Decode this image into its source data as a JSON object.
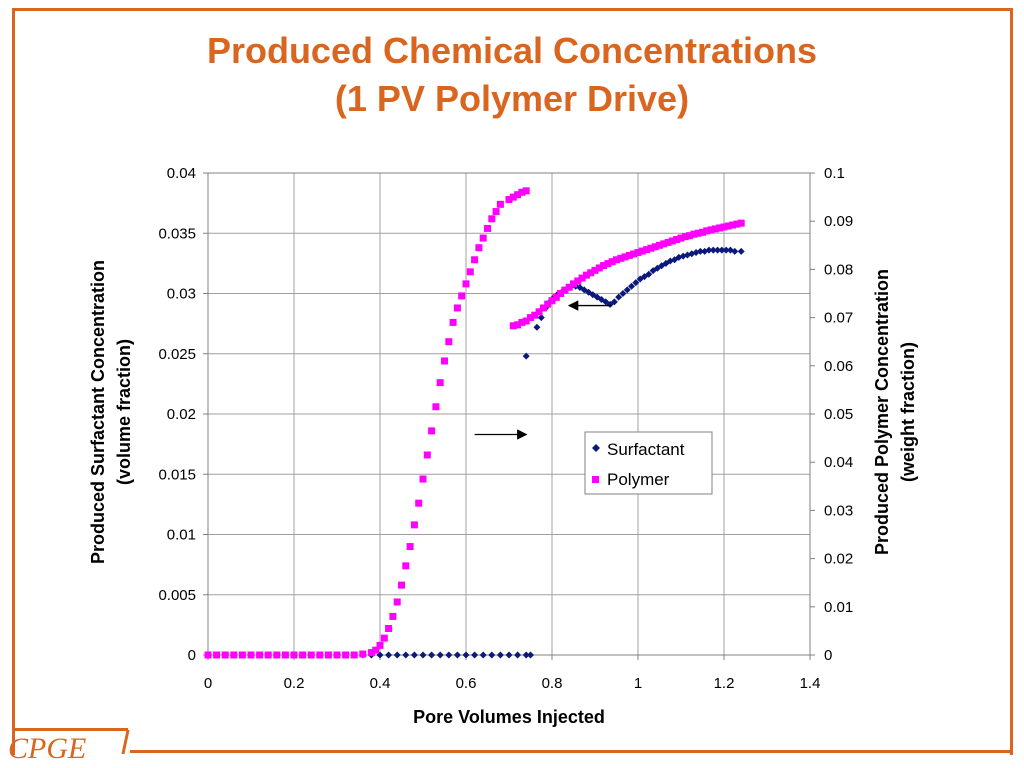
{
  "slide": {
    "title_line1": "Produced Chemical Concentrations",
    "title_line2": "(1 PV Polymer Drive)",
    "logo_text": "CPGE",
    "accent_color": "#d9651e"
  },
  "chart_data": {
    "type": "scatter",
    "xlabel": "Pore Volumes Injected",
    "ylabel_left_line1": "Produced Surfactant Concentration",
    "ylabel_left_line2": "(volume fraction)",
    "ylabel_right_line1": "Produced Polymer Concentration",
    "ylabel_right_line2": "(weight fraction)",
    "xlim": [
      0,
      1.4
    ],
    "ylim_left": [
      0,
      0.04
    ],
    "ylim_right": [
      0,
      0.1
    ],
    "x_ticks": [
      "0",
      "0.2",
      "0.4",
      "0.6",
      "0.8",
      "1",
      "1.2",
      "1.4"
    ],
    "y_left_ticks": [
      "0",
      "0.005",
      "0.01",
      "0.015",
      "0.02",
      "0.025",
      "0.03",
      "0.035",
      "0.04"
    ],
    "y_right_ticks": [
      "0",
      "0.01",
      "0.02",
      "0.03",
      "0.04",
      "0.05",
      "0.06",
      "0.07",
      "0.08",
      "0.09",
      "0.1"
    ],
    "grid": true,
    "legend_position": "center-right",
    "series": [
      {
        "name": "Surfactant",
        "axis": "left",
        "color": "#0b1a7a",
        "marker": "diamond",
        "points": [
          [
            0,
            0
          ],
          [
            0.02,
            0
          ],
          [
            0.04,
            0
          ],
          [
            0.06,
            0
          ],
          [
            0.08,
            0
          ],
          [
            0.1,
            0
          ],
          [
            0.12,
            0
          ],
          [
            0.14,
            0
          ],
          [
            0.16,
            0
          ],
          [
            0.18,
            0
          ],
          [
            0.2,
            0
          ],
          [
            0.22,
            0
          ],
          [
            0.24,
            0
          ],
          [
            0.26,
            0
          ],
          [
            0.28,
            0
          ],
          [
            0.3,
            0
          ],
          [
            0.32,
            0
          ],
          [
            0.34,
            0
          ],
          [
            0.36,
            0
          ],
          [
            0.38,
            0
          ],
          [
            0.4,
            0
          ],
          [
            0.42,
            0
          ],
          [
            0.44,
            0
          ],
          [
            0.46,
            0
          ],
          [
            0.48,
            0
          ],
          [
            0.5,
            0
          ],
          [
            0.52,
            0
          ],
          [
            0.54,
            0
          ],
          [
            0.56,
            0
          ],
          [
            0.58,
            0
          ],
          [
            0.6,
            0
          ],
          [
            0.62,
            0
          ],
          [
            0.64,
            0
          ],
          [
            0.66,
            0
          ],
          [
            0.68,
            0
          ],
          [
            0.7,
            0
          ],
          [
            0.72,
            0
          ],
          [
            0.74,
            0
          ],
          [
            0.75,
            0
          ],
          [
            0.74,
            0.0248
          ],
          [
            0.765,
            0.0272
          ],
          [
            0.775,
            0.028
          ],
          [
            0.785,
            0.0288
          ],
          [
            0.795,
            0.0293
          ],
          [
            0.805,
            0.0297
          ],
          [
            0.815,
            0.03
          ],
          [
            0.825,
            0.0302
          ],
          [
            0.835,
            0.0304
          ],
          [
            0.845,
            0.0306
          ],
          [
            0.855,
            0.0306
          ],
          [
            0.865,
            0.0305
          ],
          [
            0.875,
            0.0303
          ],
          [
            0.885,
            0.0301
          ],
          [
            0.895,
            0.0299
          ],
          [
            0.905,
            0.0297
          ],
          [
            0.915,
            0.0295
          ],
          [
            0.925,
            0.0293
          ],
          [
            0.935,
            0.0291
          ],
          [
            0.945,
            0.0293
          ],
          [
            0.955,
            0.0297
          ],
          [
            0.965,
            0.03
          ],
          [
            0.975,
            0.0303
          ],
          [
            0.985,
            0.0306
          ],
          [
            0.995,
            0.0309
          ],
          [
            1.005,
            0.0312
          ],
          [
            1.015,
            0.0314
          ],
          [
            1.025,
            0.0316
          ],
          [
            1.035,
            0.0319
          ],
          [
            1.045,
            0.0321
          ],
          [
            1.055,
            0.0323
          ],
          [
            1.065,
            0.0325
          ],
          [
            1.075,
            0.0327
          ],
          [
            1.085,
            0.0328
          ],
          [
            1.095,
            0.033
          ],
          [
            1.105,
            0.0331
          ],
          [
            1.115,
            0.0332
          ],
          [
            1.125,
            0.0333
          ],
          [
            1.135,
            0.0334
          ],
          [
            1.145,
            0.0335
          ],
          [
            1.155,
            0.0335
          ],
          [
            1.165,
            0.0336
          ],
          [
            1.175,
            0.0336
          ],
          [
            1.185,
            0.0336
          ],
          [
            1.195,
            0.0336
          ],
          [
            1.205,
            0.0336
          ],
          [
            1.215,
            0.0336
          ],
          [
            1.225,
            0.0335
          ],
          [
            1.24,
            0.0335
          ]
        ]
      },
      {
        "name": "Polymer",
        "axis": "right",
        "color": "#ff00ff",
        "marker": "square",
        "points": [
          [
            0,
            0
          ],
          [
            0.02,
            0
          ],
          [
            0.04,
            0
          ],
          [
            0.06,
            0
          ],
          [
            0.08,
            0
          ],
          [
            0.1,
            0
          ],
          [
            0.12,
            0
          ],
          [
            0.14,
            0
          ],
          [
            0.16,
            0
          ],
          [
            0.18,
            0
          ],
          [
            0.2,
            0
          ],
          [
            0.22,
            0
          ],
          [
            0.24,
            0
          ],
          [
            0.26,
            0
          ],
          [
            0.28,
            0
          ],
          [
            0.3,
            0
          ],
          [
            0.32,
            0
          ],
          [
            0.34,
            0
          ],
          [
            0.36,
            0.0002
          ],
          [
            0.38,
            0.0005
          ],
          [
            0.39,
            0.001
          ],
          [
            0.4,
            0.002
          ],
          [
            0.41,
            0.0035
          ],
          [
            0.42,
            0.0055
          ],
          [
            0.43,
            0.008
          ],
          [
            0.44,
            0.011
          ],
          [
            0.45,
            0.0145
          ],
          [
            0.46,
            0.0185
          ],
          [
            0.47,
            0.0225
          ],
          [
            0.48,
            0.027
          ],
          [
            0.49,
            0.0315
          ],
          [
            0.5,
            0.0365
          ],
          [
            0.51,
            0.0415
          ],
          [
            0.52,
            0.0465
          ],
          [
            0.53,
            0.0515
          ],
          [
            0.54,
            0.0565
          ],
          [
            0.55,
            0.061
          ],
          [
            0.56,
            0.065
          ],
          [
            0.57,
            0.069
          ],
          [
            0.58,
            0.072
          ],
          [
            0.59,
            0.0745
          ],
          [
            0.6,
            0.077
          ],
          [
            0.61,
            0.0795
          ],
          [
            0.62,
            0.082
          ],
          [
            0.63,
            0.0845
          ],
          [
            0.64,
            0.0865
          ],
          [
            0.65,
            0.0885
          ],
          [
            0.66,
            0.0905
          ],
          [
            0.67,
            0.092
          ],
          [
            0.68,
            0.0935
          ],
          [
            0.7,
            0.0945
          ],
          [
            0.71,
            0.095
          ],
          [
            0.72,
            0.0955
          ],
          [
            0.73,
            0.096
          ],
          [
            0.74,
            0.0963
          ],
          [
            0.71,
            0.0683
          ],
          [
            0.72,
            0.0685
          ],
          [
            0.73,
            0.069
          ],
          [
            0.74,
            0.0693
          ],
          [
            0.75,
            0.07
          ],
          [
            0.76,
            0.0705
          ],
          [
            0.77,
            0.0712
          ],
          [
            0.78,
            0.072
          ],
          [
            0.79,
            0.0728
          ],
          [
            0.8,
            0.0735
          ],
          [
            0.81,
            0.0742
          ],
          [
            0.82,
            0.075
          ],
          [
            0.83,
            0.0757
          ],
          [
            0.84,
            0.0763
          ],
          [
            0.85,
            0.077
          ],
          [
            0.86,
            0.0776
          ],
          [
            0.87,
            0.0782
          ],
          [
            0.88,
            0.0788
          ],
          [
            0.89,
            0.0793
          ],
          [
            0.9,
            0.0798
          ],
          [
            0.91,
            0.0803
          ],
          [
            0.92,
            0.0808
          ],
          [
            0.93,
            0.0812
          ],
          [
            0.94,
            0.0816
          ],
          [
            0.95,
            0.082
          ],
          [
            0.96,
            0.0823
          ],
          [
            0.97,
            0.0826
          ],
          [
            0.98,
            0.0829
          ],
          [
            0.99,
            0.0832
          ],
          [
            1.0,
            0.0835
          ],
          [
            1.01,
            0.0838
          ],
          [
            1.02,
            0.0841
          ],
          [
            1.03,
            0.0844
          ],
          [
            1.04,
            0.0847
          ],
          [
            1.05,
            0.085
          ],
          [
            1.06,
            0.0853
          ],
          [
            1.07,
            0.0856
          ],
          [
            1.08,
            0.0859
          ],
          [
            1.09,
            0.0862
          ],
          [
            1.1,
            0.0865
          ],
          [
            1.11,
            0.0868
          ],
          [
            1.12,
            0.087
          ],
          [
            1.13,
            0.0873
          ],
          [
            1.14,
            0.0875
          ],
          [
            1.15,
            0.0877
          ],
          [
            1.16,
            0.088
          ],
          [
            1.17,
            0.0882
          ],
          [
            1.18,
            0.0884
          ],
          [
            1.19,
            0.0886
          ],
          [
            1.2,
            0.0888
          ],
          [
            1.21,
            0.089
          ],
          [
            1.22,
            0.0892
          ],
          [
            1.23,
            0.0894
          ],
          [
            1.24,
            0.0896
          ]
        ]
      }
    ],
    "annotations": [
      {
        "type": "arrow",
        "from": [
          0.62,
          0.0183
        ],
        "to": [
          0.74,
          0.0183
        ],
        "direction": "right"
      },
      {
        "type": "arrow",
        "from": [
          0.94,
          0.029
        ],
        "to": [
          0.84,
          0.029
        ],
        "direction": "left"
      }
    ]
  }
}
